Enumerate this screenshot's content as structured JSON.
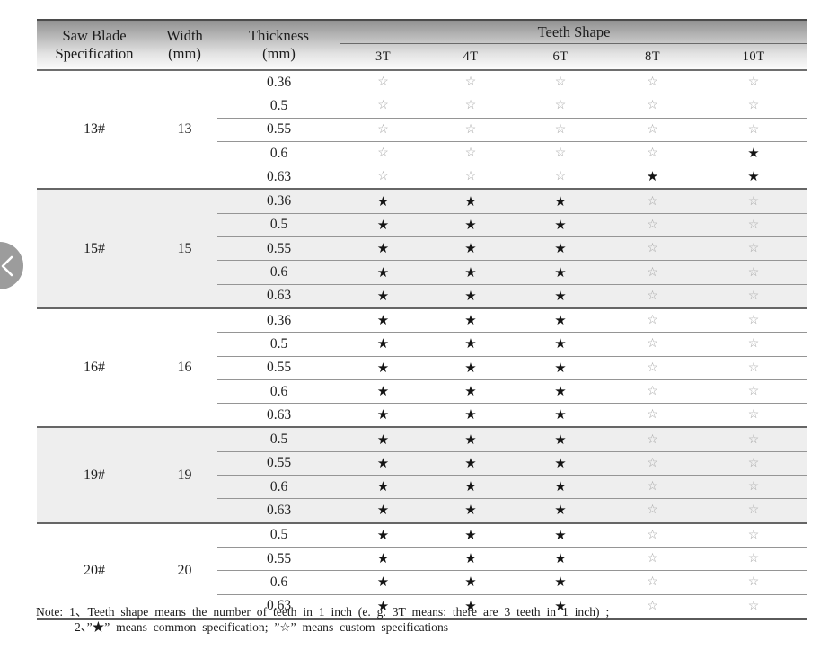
{
  "colors": {
    "shaded_row": "#eeeeee",
    "filled_star": "#141414",
    "outline_star": "#a5a5a5",
    "header_gradient_top": "#8f8f8f",
    "header_gradient_bottom": "#fdfdfd",
    "carousel_button": "#9c9c9c"
  },
  "carousel": {
    "prev_icon": "chevron-left"
  },
  "table": {
    "header": {
      "spec_line1": "Saw Blade",
      "spec_line2": "Specification",
      "width_line1": "Width",
      "width_line2": "(mm)",
      "thickness_line1": "Thickness",
      "thickness_line2": "(mm)",
      "teeth_shape": "Teeth Shape",
      "teeth_columns": [
        "3T",
        "4T",
        "6T",
        "8T",
        "10T"
      ]
    },
    "legend": {
      "filled": "★",
      "outline": "☆"
    },
    "groups": [
      {
        "spec": "13#",
        "width": "13",
        "shaded": false,
        "rows": [
          {
            "thickness": "0.36",
            "teeth": [
              0,
              0,
              0,
              0,
              0
            ]
          },
          {
            "thickness": "0.5",
            "teeth": [
              0,
              0,
              0,
              0,
              0
            ]
          },
          {
            "thickness": "0.55",
            "teeth": [
              0,
              0,
              0,
              0,
              0
            ]
          },
          {
            "thickness": "0.6",
            "teeth": [
              0,
              0,
              0,
              0,
              1
            ]
          },
          {
            "thickness": "0.63",
            "teeth": [
              0,
              0,
              0,
              1,
              1
            ]
          }
        ]
      },
      {
        "spec": "15#",
        "width": "15",
        "shaded": true,
        "rows": [
          {
            "thickness": "0.36",
            "teeth": [
              1,
              1,
              1,
              0,
              0
            ]
          },
          {
            "thickness": "0.5",
            "teeth": [
              1,
              1,
              1,
              0,
              0
            ]
          },
          {
            "thickness": "0.55",
            "teeth": [
              1,
              1,
              1,
              0,
              0
            ]
          },
          {
            "thickness": "0.6",
            "teeth": [
              1,
              1,
              1,
              0,
              0
            ]
          },
          {
            "thickness": "0.63",
            "teeth": [
              1,
              1,
              1,
              0,
              0
            ]
          }
        ]
      },
      {
        "spec": "16#",
        "width": "16",
        "shaded": false,
        "rows": [
          {
            "thickness": "0.36",
            "teeth": [
              1,
              1,
              1,
              0,
              0
            ]
          },
          {
            "thickness": "0.5",
            "teeth": [
              1,
              1,
              1,
              0,
              0
            ]
          },
          {
            "thickness": "0.55",
            "teeth": [
              1,
              1,
              1,
              0,
              0
            ]
          },
          {
            "thickness": "0.6",
            "teeth": [
              1,
              1,
              1,
              0,
              0
            ]
          },
          {
            "thickness": "0.63",
            "teeth": [
              1,
              1,
              1,
              0,
              0
            ]
          }
        ]
      },
      {
        "spec": "19#",
        "width": "19",
        "shaded": true,
        "rows": [
          {
            "thickness": "0.5",
            "teeth": [
              1,
              1,
              1,
              0,
              0
            ]
          },
          {
            "thickness": "0.55",
            "teeth": [
              1,
              1,
              1,
              0,
              0
            ]
          },
          {
            "thickness": "0.6",
            "teeth": [
              1,
              1,
              1,
              0,
              0
            ]
          },
          {
            "thickness": "0.63",
            "teeth": [
              1,
              1,
              1,
              0,
              0
            ]
          }
        ]
      },
      {
        "spec": "20#",
        "width": "20",
        "shaded": false,
        "rows": [
          {
            "thickness": "0.5",
            "teeth": [
              1,
              1,
              1,
              0,
              0
            ]
          },
          {
            "thickness": "0.55",
            "teeth": [
              1,
              1,
              1,
              0,
              0
            ]
          },
          {
            "thickness": "0.6",
            "teeth": [
              1,
              1,
              1,
              0,
              0
            ]
          },
          {
            "thickness": "0.63",
            "teeth": [
              1,
              1,
              1,
              0,
              0
            ]
          }
        ]
      }
    ],
    "notes": {
      "line1": "Note: 1、Teeth shape means the number of teeth in 1 inch (e. g. 3T  means: there are 3 teeth in 1 inch) ;",
      "line2": "2、”★” means common specification; ”☆” means custom specifications"
    }
  }
}
